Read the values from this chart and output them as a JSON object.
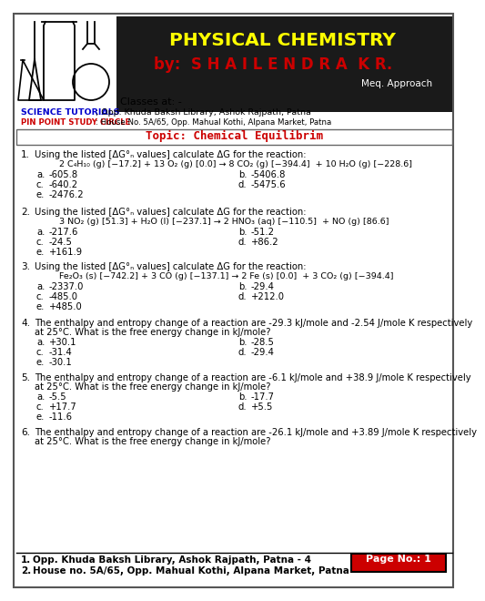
{
  "bg_color": "#ffffff",
  "header_bg": "#1a1a1a",
  "header_text": "PHYSICAL CHEMISTRY",
  "header_text_color": "#ffff00",
  "byline_text": "by:  S H A I L E N D R A  K R.",
  "byline_color": "#cc0000",
  "meq_text": "Meq. Approach",
  "meq_bg": "#1a1a1a",
  "meq_color": "#ffffff",
  "classes_text": "Classes at: -",
  "science_label": "SCIENCE TUTORIALS",
  "science_color": "#0000cc",
  "science_addr": "; Opp. Khuda Baksh Library, Ashok Rajpath, Patna",
  "pin_label": "PIN POINT STUDY CIRCLE",
  "pin_color": "#cc0000",
  "pin_addr": ": House No. 5A/65, Opp. Mahual Kothi, Alpana Market, Patna",
  "topic_text": "Topic: Chemical Equilibrim",
  "topic_color": "#cc0000",
  "footer_addr1": "Opp. Khuda Baksh Library, Ashok Rajpath, Patna - 4",
  "footer_addr2": "House no. 5A/65, Opp. Mahual Kothi, Alpana Market, Patna",
  "page_text": "Page No.: 1",
  "questions": [
    {
      "num": "1.",
      "text": "Using the listed [ΔG°ₙ values] calculate ΔG for the reaction:",
      "reaction": "2 C₄H₁₀ (g) [−17.2] + 13 O₂ (g) [0.0] → 8 CO₂ (g) [−394.4]  + 10 H₂O (g) [−228.6]",
      "options": [
        [
          "a.",
          "-605.8",
          "b.",
          "-5406.8"
        ],
        [
          "c.",
          "-640.2",
          "d.",
          "-5475.6"
        ],
        [
          "e.",
          "-2476.2",
          "",
          ""
        ]
      ]
    },
    {
      "num": "2.",
      "text": "Using the listed [ΔG°ₙ values] calculate ΔG for the reaction:",
      "reaction": "3 NO₂ (g) [51.3] + H₂O (l) [−237.1] → 2 HNO₃ (aq) [−110.5]  + NO (g) [86.6]",
      "options": [
        [
          "a.",
          "-217.6",
          "b.",
          "-51.2"
        ],
        [
          "c.",
          "-24.5",
          "d.",
          "+86.2"
        ],
        [
          "e.",
          "+161.9",
          "",
          ""
        ]
      ]
    },
    {
      "num": "3.",
      "text": "Using the listed [ΔG°ₙ values] calculate ΔG for the reaction:",
      "reaction": "Fe₂O₃ (s) [−742.2] + 3 CO (g) [−137.1] → 2 Fe (s) [0.0]  + 3 CO₂ (g) [−394.4]",
      "options": [
        [
          "a.",
          "-2337.0",
          "b.",
          "-29.4"
        ],
        [
          "c.",
          "-485.0",
          "d.",
          "+212.0"
        ],
        [
          "e.",
          "+485.0",
          "",
          ""
        ]
      ]
    },
    {
      "num": "4.",
      "text": "The enthalpy and entropy change of a reaction are -29.3 kJ/mole and -2.54 J/mole K respectively\nat 25°C. What is the free energy change in kJ/mole?",
      "reaction": "",
      "options": [
        [
          "a.",
          "+30.1",
          "b.",
          "-28.5"
        ],
        [
          "c.",
          "-31.4",
          "d.",
          "-29.4"
        ],
        [
          "e.",
          "-30.1",
          "",
          ""
        ]
      ]
    },
    {
      "num": "5.",
      "text": "The enthalpy and entropy change of a reaction are -6.1 kJ/mole and +38.9 J/mole K respectively\nat 25°C. What is the free energy change in kJ/mole?",
      "reaction": "",
      "options": [
        [
          "a.",
          "-5.5",
          "b.",
          "-17.7"
        ],
        [
          "c.",
          "+17.7",
          "d.",
          "+5.5"
        ],
        [
          "e.",
          "-11.6",
          "",
          ""
        ]
      ]
    },
    {
      "num": "6.",
      "text": "The enthalpy and entropy change of a reaction are -26.1 kJ/mole and +3.89 J/mole K respectively\nat 25°C. What is the free energy change in kJ/mole?",
      "reaction": "",
      "options": []
    }
  ]
}
